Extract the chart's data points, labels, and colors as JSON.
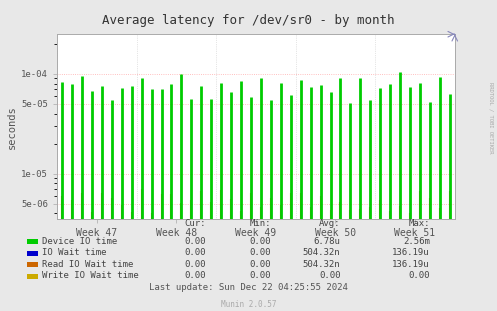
{
  "title": "Average latency for /dev/sr0 - by month",
  "ylabel": "seconds",
  "background_color": "#e8e8e8",
  "plot_background": "#ffffff",
  "week_labels": [
    "Week 47",
    "Week 48",
    "Week 49",
    "Week 50",
    "Week 51"
  ],
  "series": {
    "device_io": {
      "color": "#00cc00",
      "label": "Device IO time",
      "cur": "0.00",
      "min": "0.00",
      "avg": "6.78u",
      "max": "2.56m"
    },
    "io_wait": {
      "color": "#0000cc",
      "label": "IO Wait time",
      "cur": "0.00",
      "min": "0.00",
      "avg": "504.32n",
      "max": "136.19u"
    },
    "read_io_wait": {
      "color": "#cc6600",
      "label": "Read IO Wait time",
      "cur": "0.00",
      "min": "0.00",
      "avg": "504.32n",
      "max": "136.19u"
    },
    "write_io_wait": {
      "color": "#ccaa00",
      "label": "Write IO Wait time",
      "cur": "0.00",
      "min": "0.00",
      "avg": "0.00",
      "max": "0.00"
    }
  },
  "last_update": "Last update: Sun Dec 22 04:25:55 2024",
  "munin_version": "Munin 2.0.57",
  "rrdtool_label": "RRDTOOL / TOBI OETIKER",
  "dotted_grid_color": "#ffaaaa",
  "solid_grid_color": "#cccccc",
  "n_bars": 40,
  "n_weeks": 5,
  "green_seed": 42,
  "orange_seed": 99
}
